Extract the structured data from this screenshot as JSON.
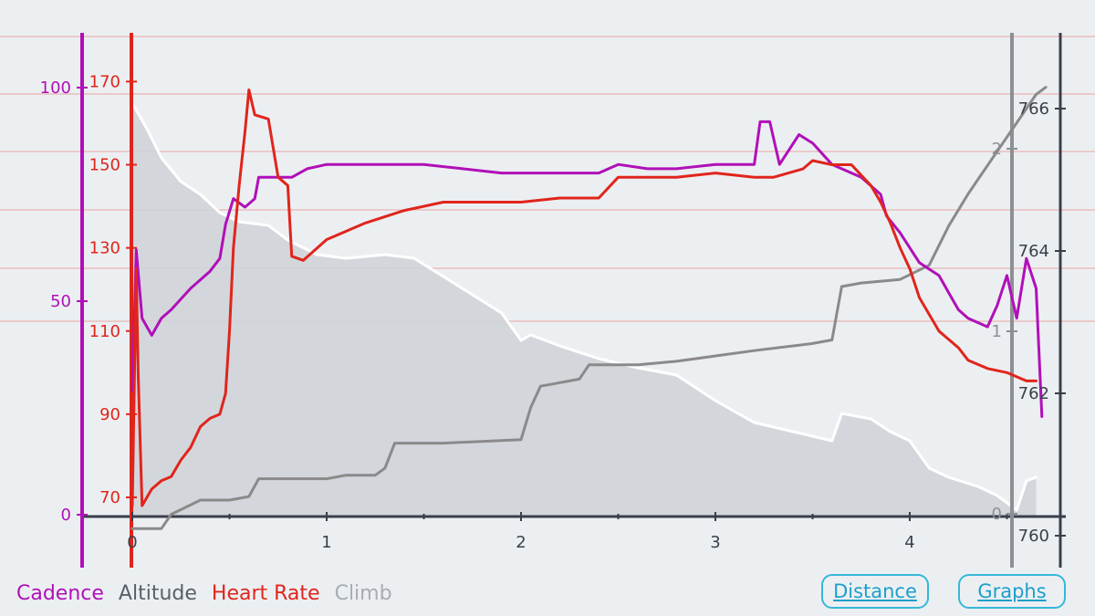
{
  "legend": {
    "cadence": "Cadence",
    "altitude": "Altitude",
    "heart_rate": "Heart Rate",
    "climb": "Climb"
  },
  "buttons": {
    "distance": "Distance",
    "graphs": "Graphs"
  },
  "colors": {
    "cadence": "#b010b8",
    "heart_rate": "#e0251c",
    "altitude": "#8a8a8a",
    "climb_line": "#ffffff",
    "climb_fill": "#cfd2d8",
    "axis_dark": "#3a3f4a",
    "gridline": "#e7a5a3"
  },
  "chart_data": {
    "type": "line",
    "x_axis": {
      "label": "",
      "ticks": [
        "0",
        "1",
        "2",
        "3",
        "4"
      ],
      "range": [
        0,
        4.6
      ]
    },
    "y_axes": {
      "cadence": {
        "ticks": [
          "0",
          "50",
          "100"
        ],
        "range": [
          0,
          100
        ]
      },
      "heart_rate": {
        "ticks": [
          "70",
          "90",
          "110",
          "130",
          "150",
          "170"
        ],
        "range": [
          70,
          170
        ]
      },
      "climb": {
        "ticks": [
          "0",
          "1",
          "2"
        ],
        "range": [
          0,
          2
        ]
      },
      "altitude": {
        "ticks": [
          "760",
          "762",
          "764",
          "766"
        ],
        "range": [
          760,
          766
        ]
      }
    },
    "grid": true,
    "legend_position": "bottom-left",
    "series": [
      {
        "name": "Climb",
        "axis": "climb",
        "style": "area",
        "points": [
          [
            0,
            2.25
          ],
          [
            0.08,
            2.1
          ],
          [
            0.15,
            1.95
          ],
          [
            0.25,
            1.82
          ],
          [
            0.35,
            1.75
          ],
          [
            0.45,
            1.65
          ],
          [
            0.55,
            1.6
          ],
          [
            0.7,
            1.58
          ],
          [
            0.8,
            1.5
          ],
          [
            0.95,
            1.42
          ],
          [
            1.1,
            1.4
          ],
          [
            1.3,
            1.42
          ],
          [
            1.45,
            1.4
          ],
          [
            1.6,
            1.3
          ],
          [
            1.75,
            1.2
          ],
          [
            1.9,
            1.1
          ],
          [
            2.0,
            0.95
          ],
          [
            2.05,
            0.98
          ],
          [
            2.2,
            0.92
          ],
          [
            2.4,
            0.85
          ],
          [
            2.6,
            0.8
          ],
          [
            2.8,
            0.76
          ],
          [
            3.0,
            0.62
          ],
          [
            3.2,
            0.5
          ],
          [
            3.4,
            0.45
          ],
          [
            3.6,
            0.4
          ],
          [
            3.65,
            0.55
          ],
          [
            3.8,
            0.52
          ],
          [
            3.9,
            0.45
          ],
          [
            4.0,
            0.4
          ],
          [
            4.1,
            0.25
          ],
          [
            4.2,
            0.2
          ],
          [
            4.35,
            0.15
          ],
          [
            4.45,
            0.1
          ],
          [
            4.55,
            0.02
          ],
          [
            4.6,
            0.18
          ],
          [
            4.65,
            0.2
          ]
        ]
      },
      {
        "name": "Altitude",
        "axis": "altitude",
        "style": "line",
        "points": [
          [
            0,
            760.1
          ],
          [
            0.15,
            760.1
          ],
          [
            0.2,
            760.3
          ],
          [
            0.35,
            760.5
          ],
          [
            0.5,
            760.5
          ],
          [
            0.6,
            760.55
          ],
          [
            0.65,
            760.8
          ],
          [
            1.0,
            760.8
          ],
          [
            1.1,
            760.85
          ],
          [
            1.25,
            760.85
          ],
          [
            1.3,
            760.95
          ],
          [
            1.35,
            761.3
          ],
          [
            1.5,
            761.3
          ],
          [
            1.6,
            761.3
          ],
          [
            2.0,
            761.35
          ],
          [
            2.05,
            761.8
          ],
          [
            2.1,
            762.1
          ],
          [
            2.2,
            762.15
          ],
          [
            2.3,
            762.2
          ],
          [
            2.35,
            762.4
          ],
          [
            2.6,
            762.4
          ],
          [
            2.8,
            762.45
          ],
          [
            3.2,
            762.6
          ],
          [
            3.5,
            762.7
          ],
          [
            3.6,
            762.75
          ],
          [
            3.65,
            763.5
          ],
          [
            3.75,
            763.55
          ],
          [
            3.95,
            763.6
          ],
          [
            4.1,
            763.8
          ],
          [
            4.2,
            764.35
          ],
          [
            4.3,
            764.8
          ],
          [
            4.35,
            765.0
          ],
          [
            4.45,
            765.4
          ],
          [
            4.55,
            765.8
          ],
          [
            4.65,
            766.2
          ],
          [
            4.7,
            766.3
          ]
        ]
      },
      {
        "name": "Cadence",
        "axis": "cadence",
        "style": "line",
        "points": [
          [
            0,
            29
          ],
          [
            0.02,
            62
          ],
          [
            0.05,
            46
          ],
          [
            0.1,
            42
          ],
          [
            0.15,
            46
          ],
          [
            0.2,
            48
          ],
          [
            0.3,
            53
          ],
          [
            0.4,
            57
          ],
          [
            0.45,
            60
          ],
          [
            0.48,
            68
          ],
          [
            0.52,
            74
          ],
          [
            0.58,
            72
          ],
          [
            0.63,
            74
          ],
          [
            0.65,
            79
          ],
          [
            0.75,
            79
          ],
          [
            0.82,
            79
          ],
          [
            0.9,
            81
          ],
          [
            1.0,
            82
          ],
          [
            1.15,
            82
          ],
          [
            1.3,
            82
          ],
          [
            1.5,
            82
          ],
          [
            1.7,
            81
          ],
          [
            1.9,
            80
          ],
          [
            2.1,
            80
          ],
          [
            2.4,
            80
          ],
          [
            2.5,
            82
          ],
          [
            2.65,
            81
          ],
          [
            2.8,
            81
          ],
          [
            3.0,
            82
          ],
          [
            3.2,
            82
          ],
          [
            3.23,
            92
          ],
          [
            3.28,
            92
          ],
          [
            3.33,
            82
          ],
          [
            3.43,
            89
          ],
          [
            3.5,
            87
          ],
          [
            3.6,
            82
          ],
          [
            3.75,
            79
          ],
          [
            3.85,
            75
          ],
          [
            3.88,
            70
          ],
          [
            3.95,
            66
          ],
          [
            4.05,
            59
          ],
          [
            4.15,
            56
          ],
          [
            4.2,
            52
          ],
          [
            4.25,
            48
          ],
          [
            4.3,
            46
          ],
          [
            4.4,
            44
          ],
          [
            4.45,
            49
          ],
          [
            4.5,
            56
          ],
          [
            4.55,
            46
          ],
          [
            4.6,
            60
          ],
          [
            4.65,
            53
          ],
          [
            4.68,
            23
          ]
        ]
      },
      {
        "name": "Heart Rate",
        "axis": "heart_rate",
        "style": "line",
        "points": [
          [
            0,
            68
          ],
          [
            0.02,
            125
          ],
          [
            0.03,
            100
          ],
          [
            0.05,
            68
          ],
          [
            0.1,
            72
          ],
          [
            0.15,
            74
          ],
          [
            0.2,
            75
          ],
          [
            0.25,
            79
          ],
          [
            0.3,
            82
          ],
          [
            0.35,
            87
          ],
          [
            0.4,
            89
          ],
          [
            0.45,
            90
          ],
          [
            0.48,
            95
          ],
          [
            0.5,
            110
          ],
          [
            0.52,
            130
          ],
          [
            0.55,
            145
          ],
          [
            0.58,
            158
          ],
          [
            0.6,
            168
          ],
          [
            0.63,
            162
          ],
          [
            0.7,
            161
          ],
          [
            0.75,
            147
          ],
          [
            0.8,
            145
          ],
          [
            0.82,
            128
          ],
          [
            0.88,
            127
          ],
          [
            1.0,
            132
          ],
          [
            1.2,
            136
          ],
          [
            1.4,
            139
          ],
          [
            1.6,
            141
          ],
          [
            1.8,
            141
          ],
          [
            2.0,
            141
          ],
          [
            2.2,
            142
          ],
          [
            2.4,
            142
          ],
          [
            2.5,
            147
          ],
          [
            2.65,
            147
          ],
          [
            2.8,
            147
          ],
          [
            3.0,
            148
          ],
          [
            3.2,
            147
          ],
          [
            3.3,
            147
          ],
          [
            3.45,
            149
          ],
          [
            3.5,
            151
          ],
          [
            3.6,
            150
          ],
          [
            3.7,
            150
          ],
          [
            3.8,
            145
          ],
          [
            3.85,
            141
          ],
          [
            3.9,
            136
          ],
          [
            3.95,
            130
          ],
          [
            4.0,
            125
          ],
          [
            4.05,
            118
          ],
          [
            4.1,
            114
          ],
          [
            4.15,
            110
          ],
          [
            4.2,
            108
          ],
          [
            4.25,
            106
          ],
          [
            4.3,
            103
          ],
          [
            4.4,
            101
          ],
          [
            4.5,
            100
          ],
          [
            4.6,
            98
          ],
          [
            4.65,
            98
          ]
        ]
      }
    ]
  }
}
